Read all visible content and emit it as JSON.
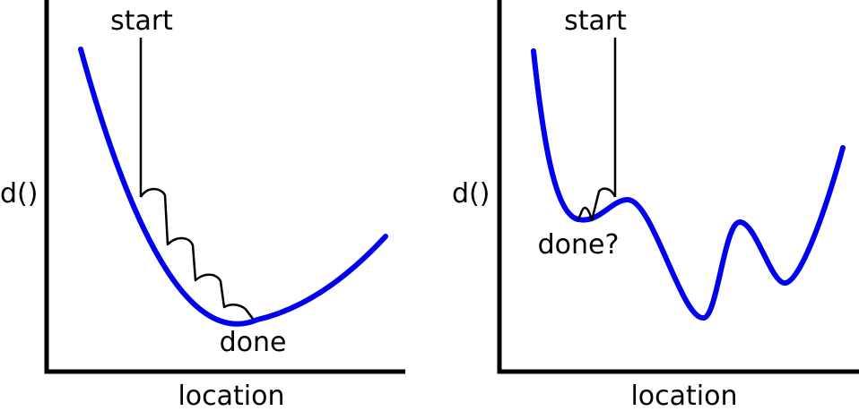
{
  "colors": {
    "curve": "#0000ee",
    "axes": "#000000",
    "path": "#000000",
    "background": "#ffffff"
  },
  "panels": [
    {
      "ylabel": "d()",
      "xlabel": "location",
      "start_label": "start",
      "end_label": "done"
    },
    {
      "ylabel": "d()",
      "xlabel": "location",
      "start_label": "start",
      "end_label": "done?"
    }
  ]
}
